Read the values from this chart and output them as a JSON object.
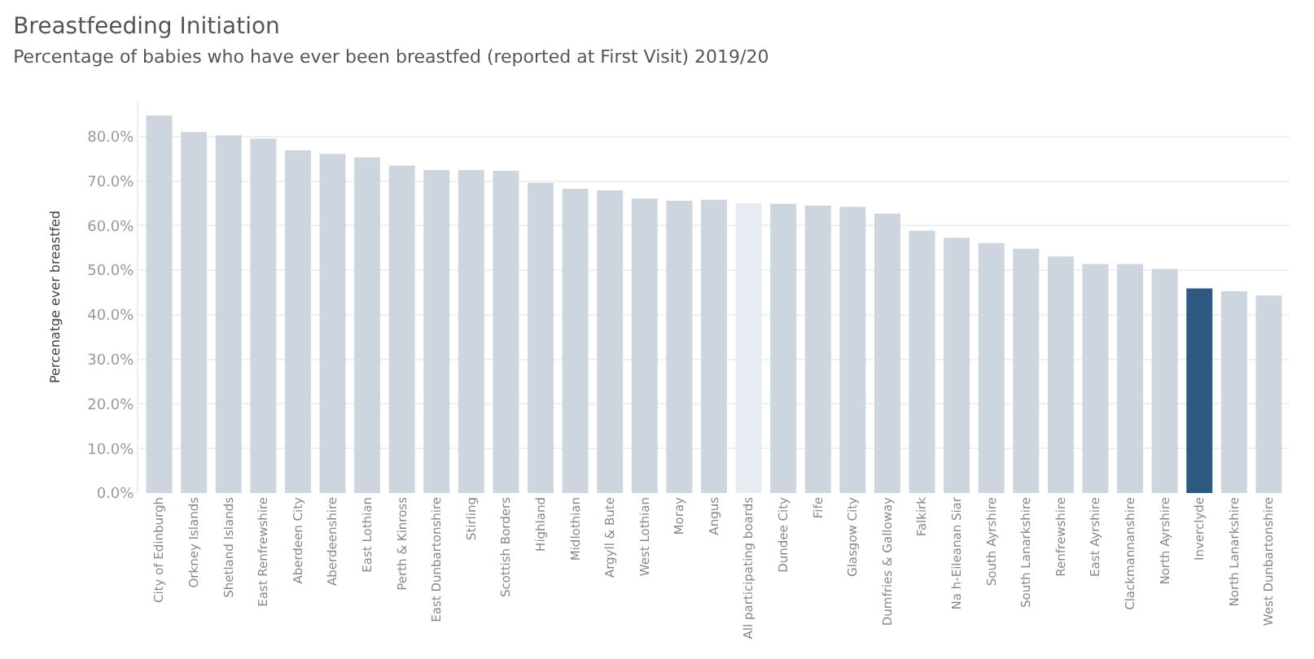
{
  "chart_data": {
    "type": "bar",
    "title": "Breastfeeding Initiation",
    "subtitle": "Percentage of babies who have ever been breastfed (reported at First Visit) 2019/20",
    "ylabel": "Percenatge ever breastfed",
    "categories": [
      "City of Edinburgh",
      "Orkney Islands",
      "Shetland Islands",
      "East Renfrewshire",
      "Aberdeen City",
      "Aberdeenshire",
      "East Lothian",
      "Perth & Kinross",
      "East Dunbartonshire",
      "Stirling",
      "Scottish Borders",
      "Highland",
      "Midlothian",
      "Argyll & Bute",
      "West Lothian",
      "Moray",
      "Angus",
      "All participating boards",
      "Dundee City",
      "Fife",
      "Glasgow City",
      "Dumfries & Galloway",
      "Falkirk",
      "Na h-Eileanan Siar",
      "South Ayrshire",
      "South Lanarkshire",
      "Renfrewshire",
      "East Ayrshire",
      "Clackmannanshire",
      "North Ayrshire",
      "Inverclyde",
      "North Lanarkshire",
      "West Dunbartonshire"
    ],
    "values": [
      84.7,
      81.0,
      80.3,
      79.5,
      76.9,
      76.1,
      75.3,
      73.5,
      72.5,
      72.5,
      72.3,
      69.6,
      68.3,
      67.9,
      66.1,
      65.6,
      65.8,
      65.0,
      64.9,
      64.5,
      64.2,
      62.7,
      58.9,
      57.3,
      56.1,
      54.8,
      53.1,
      51.4,
      51.4,
      50.3,
      45.9,
      45.3,
      44.3
    ],
    "colors": [
      "#cdd5de",
      "#cdd5de",
      "#cdd5de",
      "#cdd5de",
      "#cdd5de",
      "#cdd5de",
      "#cdd5de",
      "#cdd5de",
      "#cdd5de",
      "#cdd5de",
      "#cdd5de",
      "#cdd5de",
      "#cdd5de",
      "#cdd5de",
      "#cdd5de",
      "#cdd5de",
      "#cdd5de",
      "#e6ecf1",
      "#cdd5de",
      "#cdd5de",
      "#cdd5de",
      "#cdd5de",
      "#cdd5de",
      "#cdd5de",
      "#cdd5de",
      "#cdd5de",
      "#cdd5de",
      "#cdd5de",
      "#cdd5de",
      "#cdd5de",
      "#2e5a82",
      "#cdd5de",
      "#cdd5de"
    ],
    "ylim": [
      0,
      88
    ],
    "yticks": [
      {
        "value": 0,
        "label": "0.0%"
      },
      {
        "value": 10,
        "label": "10.0%"
      },
      {
        "value": 20,
        "label": "20.0%"
      },
      {
        "value": 30,
        "label": "30.0%"
      },
      {
        "value": 40,
        "label": "40.0%"
      },
      {
        "value": 50,
        "label": "50.0%"
      },
      {
        "value": 60,
        "label": "60.0%"
      },
      {
        "value": 70,
        "label": "70.0%"
      },
      {
        "value": 80,
        "label": "80.0%"
      }
    ],
    "grid": "y"
  }
}
